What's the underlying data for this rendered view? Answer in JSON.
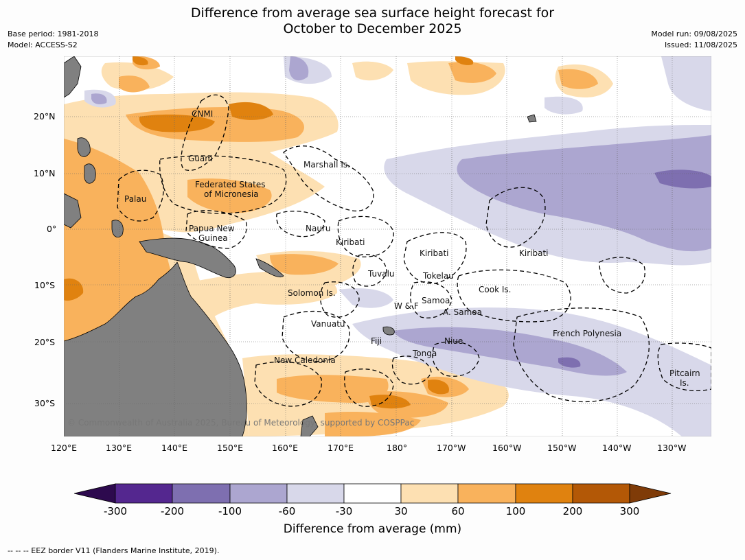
{
  "title_line1": "Difference from average sea surface height forecast for",
  "title_line2": "October to December 2025",
  "base_period": "Base period: 1981-2018",
  "model": "Model: ACCESS-S2",
  "model_run": "Model run: 09/08/2025",
  "issued": "Issued: 11/08/2025",
  "lat_labels": [
    "20°N",
    "10°N",
    "0°",
    "10°S",
    "20°S",
    "30°S"
  ],
  "lon_labels": [
    "120°E",
    "130°E",
    "140°E",
    "150°E",
    "160°E",
    "170°E",
    "180°",
    "170°W",
    "160°W",
    "150°W",
    "140°W",
    "130°W"
  ],
  "region_labels": [
    "CNMI",
    "Guam",
    "Marshall Is.",
    "Federated States",
    "of Micronesia",
    "Palau",
    "Papua New",
    "Guinea",
    "Nauru",
    "Kiribati",
    "Kiribati",
    "Kiribati",
    "Tuvalu",
    "Tokelau",
    "Cook Is.",
    "Solomon Is.",
    "Samoa",
    "W & F",
    "A. Samoa",
    "Vanuatu",
    "Fiji",
    "Niue",
    "Tonga",
    "French Polynesia",
    "New Caledonia",
    "Pitcairn",
    "Is."
  ],
  "copyright": "© Commonwealth of Australia 2025, Bureau of Meteorology, supported by COSPPac",
  "colorbar": {
    "title": "Difference from average (mm)",
    "ticks": [
      "-300",
      "-200",
      "-100",
      "-60",
      "-30",
      "30",
      "60",
      "100",
      "200",
      "300"
    ],
    "colors": [
      "#2d0a4e",
      "#54278f",
      "#7e6fb0",
      "#aca6d0",
      "#d8d8ea",
      "#ffffff",
      "#fde0b2",
      "#f9b25c",
      "#e0820f",
      "#b35806",
      "#7f3b08"
    ],
    "land_color": "#808080"
  },
  "footnote": "--  --  -- EEZ border V11 (Flanders Marine Institute, 2019)."
}
